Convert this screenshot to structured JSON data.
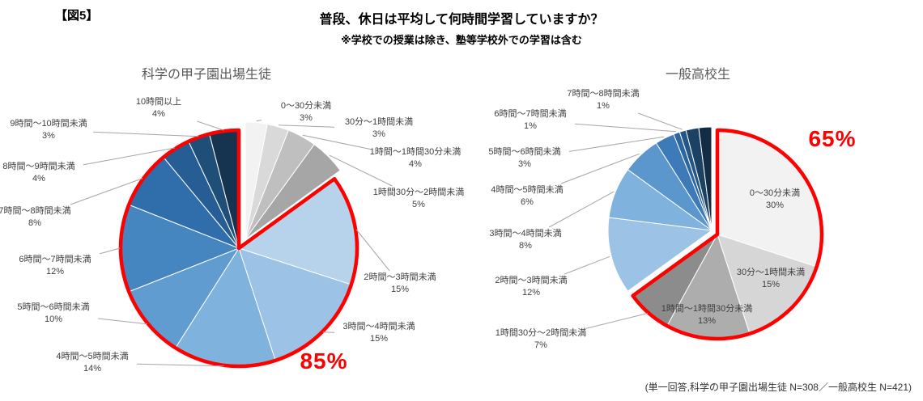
{
  "figure_label": "【図5】",
  "title": "普段、休日は平均して何時間学習していますか？",
  "subtitle": "※学校での授業は除き、塾等学校外での学習は含む",
  "footnote": "(単一回答,科学の甲子園出場生徒 N=308／一般高校生 N=421)",
  "accent_color": "#ff0000",
  "chart_data": [
    {
      "type": "pie",
      "title": "科学の甲子園出場生徒",
      "value_suffix": "%",
      "highlight": {
        "text": "85%",
        "slice_start": 4,
        "slice_end": 12
      },
      "slices": [
        {
          "label": "0〜30分未満",
          "value": 3,
          "color": "#f2f2f2"
        },
        {
          "label": "30分〜1時間未満",
          "value": 3,
          "color": "#d9d9d9"
        },
        {
          "label": "1時間〜1時間30分未満",
          "value": 4,
          "color": "#bfbfbf"
        },
        {
          "label": "1時間30分〜2時間未満",
          "value": 5,
          "color": "#a6a6a6"
        },
        {
          "label": "2時間〜3時間未満",
          "value": 15,
          "color": "#b7d3ec"
        },
        {
          "label": "3時間〜4時間未満",
          "value": 15,
          "color": "#9cc2e5"
        },
        {
          "label": "4時間〜5時間未満",
          "value": 14,
          "color": "#7fb2dd"
        },
        {
          "label": "5時間〜6時間未満",
          "value": 10,
          "color": "#609cd0"
        },
        {
          "label": "6時間〜7時間未満",
          "value": 12,
          "color": "#4585c0"
        },
        {
          "label": "7時間〜8時間未満",
          "value": 8,
          "color": "#2f6dab"
        },
        {
          "label": "8時間〜9時間未満",
          "value": 4,
          "color": "#265d94"
        },
        {
          "label": "9時間〜10時間未満",
          "value": 3,
          "color": "#1f4e79"
        },
        {
          "label": "10時間以上",
          "value": 4,
          "color": "#16344f"
        }
      ]
    },
    {
      "type": "pie",
      "title": "一般高校生",
      "value_suffix": "%",
      "highlight": {
        "text": "65%",
        "slice_start": 0,
        "slice_end": 3
      },
      "slices": [
        {
          "label": "0〜30分未満",
          "value": 30,
          "color": "#f2f2f2"
        },
        {
          "label": "30分〜1時間未満",
          "value": 15,
          "color": "#d6d6d6"
        },
        {
          "label": "1時間〜1時間30分未満",
          "value": 13,
          "color": "#adadad"
        },
        {
          "label": "1時間30分〜2時間未満",
          "value": 7,
          "color": "#8c8c8c"
        },
        {
          "label": "2時間〜3時間未満",
          "value": 12,
          "color": "#9cc2e5"
        },
        {
          "label": "3時間〜4時間未満",
          "value": 8,
          "color": "#7fb2dd"
        },
        {
          "label": "4時間〜5時間未満",
          "value": 6,
          "color": "#5b97cd"
        },
        {
          "label": "5時間〜6時間未満",
          "value": 3,
          "color": "#3d7ab8"
        },
        {
          "label": "6時間〜7時間未満",
          "value": 1,
          "color": "#2c669f"
        },
        {
          "label": "7時間〜8時間未満",
          "value": 1,
          "color": "#245687"
        },
        {
          "label": "",
          "value": 2,
          "color": "#1b4265"
        },
        {
          "label": "",
          "value": 2,
          "color": "#122c44"
        }
      ]
    }
  ]
}
